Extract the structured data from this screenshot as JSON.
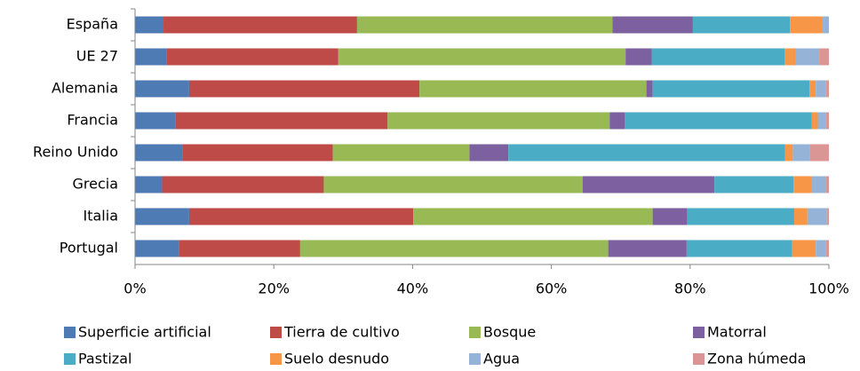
{
  "chart_data": {
    "type": "stacked_bar_horizontal",
    "categories": [
      "España",
      "UE 27",
      "Alemania",
      "Francia",
      "Reino Unido",
      "Grecia",
      "Italia",
      "Portugal"
    ],
    "series": [
      {
        "name": "Superficie artificial",
        "color": "#4f7bb4",
        "values": [
          4.1,
          4.6,
          7.8,
          5.8,
          6.8,
          3.9,
          7.8,
          6.3
        ]
      },
      {
        "name": "Tierra de cultivo",
        "color": "#be4b48",
        "values": [
          27.9,
          24.7,
          33.2,
          30.6,
          21.7,
          23.3,
          32.3,
          17.5
        ]
      },
      {
        "name": "Bosque",
        "color": "#98b954",
        "values": [
          36.8,
          41.4,
          32.7,
          32.0,
          19.7,
          37.3,
          34.5,
          44.4
        ]
      },
      {
        "name": "Matorral",
        "color": "#7d60a0",
        "values": [
          11.6,
          3.8,
          0.9,
          2.2,
          5.6,
          19.0,
          5.0,
          11.3
        ]
      },
      {
        "name": "Pastizal",
        "color": "#4aacc5",
        "values": [
          14.0,
          19.1,
          22.6,
          26.9,
          39.9,
          11.4,
          15.4,
          15.2
        ]
      },
      {
        "name": "Suelo desnudo",
        "color": "#f79646",
        "values": [
          4.7,
          1.6,
          0.9,
          0.9,
          1.1,
          2.6,
          1.9,
          3.4
        ]
      },
      {
        "name": "Agua",
        "color": "#95b3d7",
        "values": [
          0.9,
          3.4,
          1.5,
          1.2,
          2.5,
          2.0,
          2.8,
          1.5
        ]
      },
      {
        "name": "Zona húmeda",
        "color": "#d99694",
        "values": [
          0,
          1.4,
          0.4,
          0.4,
          2.7,
          0.5,
          0.3,
          0.4
        ]
      }
    ],
    "xlim": [
      0,
      100
    ],
    "xticks": [
      {
        "value": 0,
        "label": "0%"
      },
      {
        "value": 20,
        "label": "20%"
      },
      {
        "value": 40,
        "label": "40%"
      },
      {
        "value": 60,
        "label": "60%"
      },
      {
        "value": 80,
        "label": "80%"
      },
      {
        "value": 100,
        "label": "100%"
      }
    ],
    "legend": "bottom"
  }
}
